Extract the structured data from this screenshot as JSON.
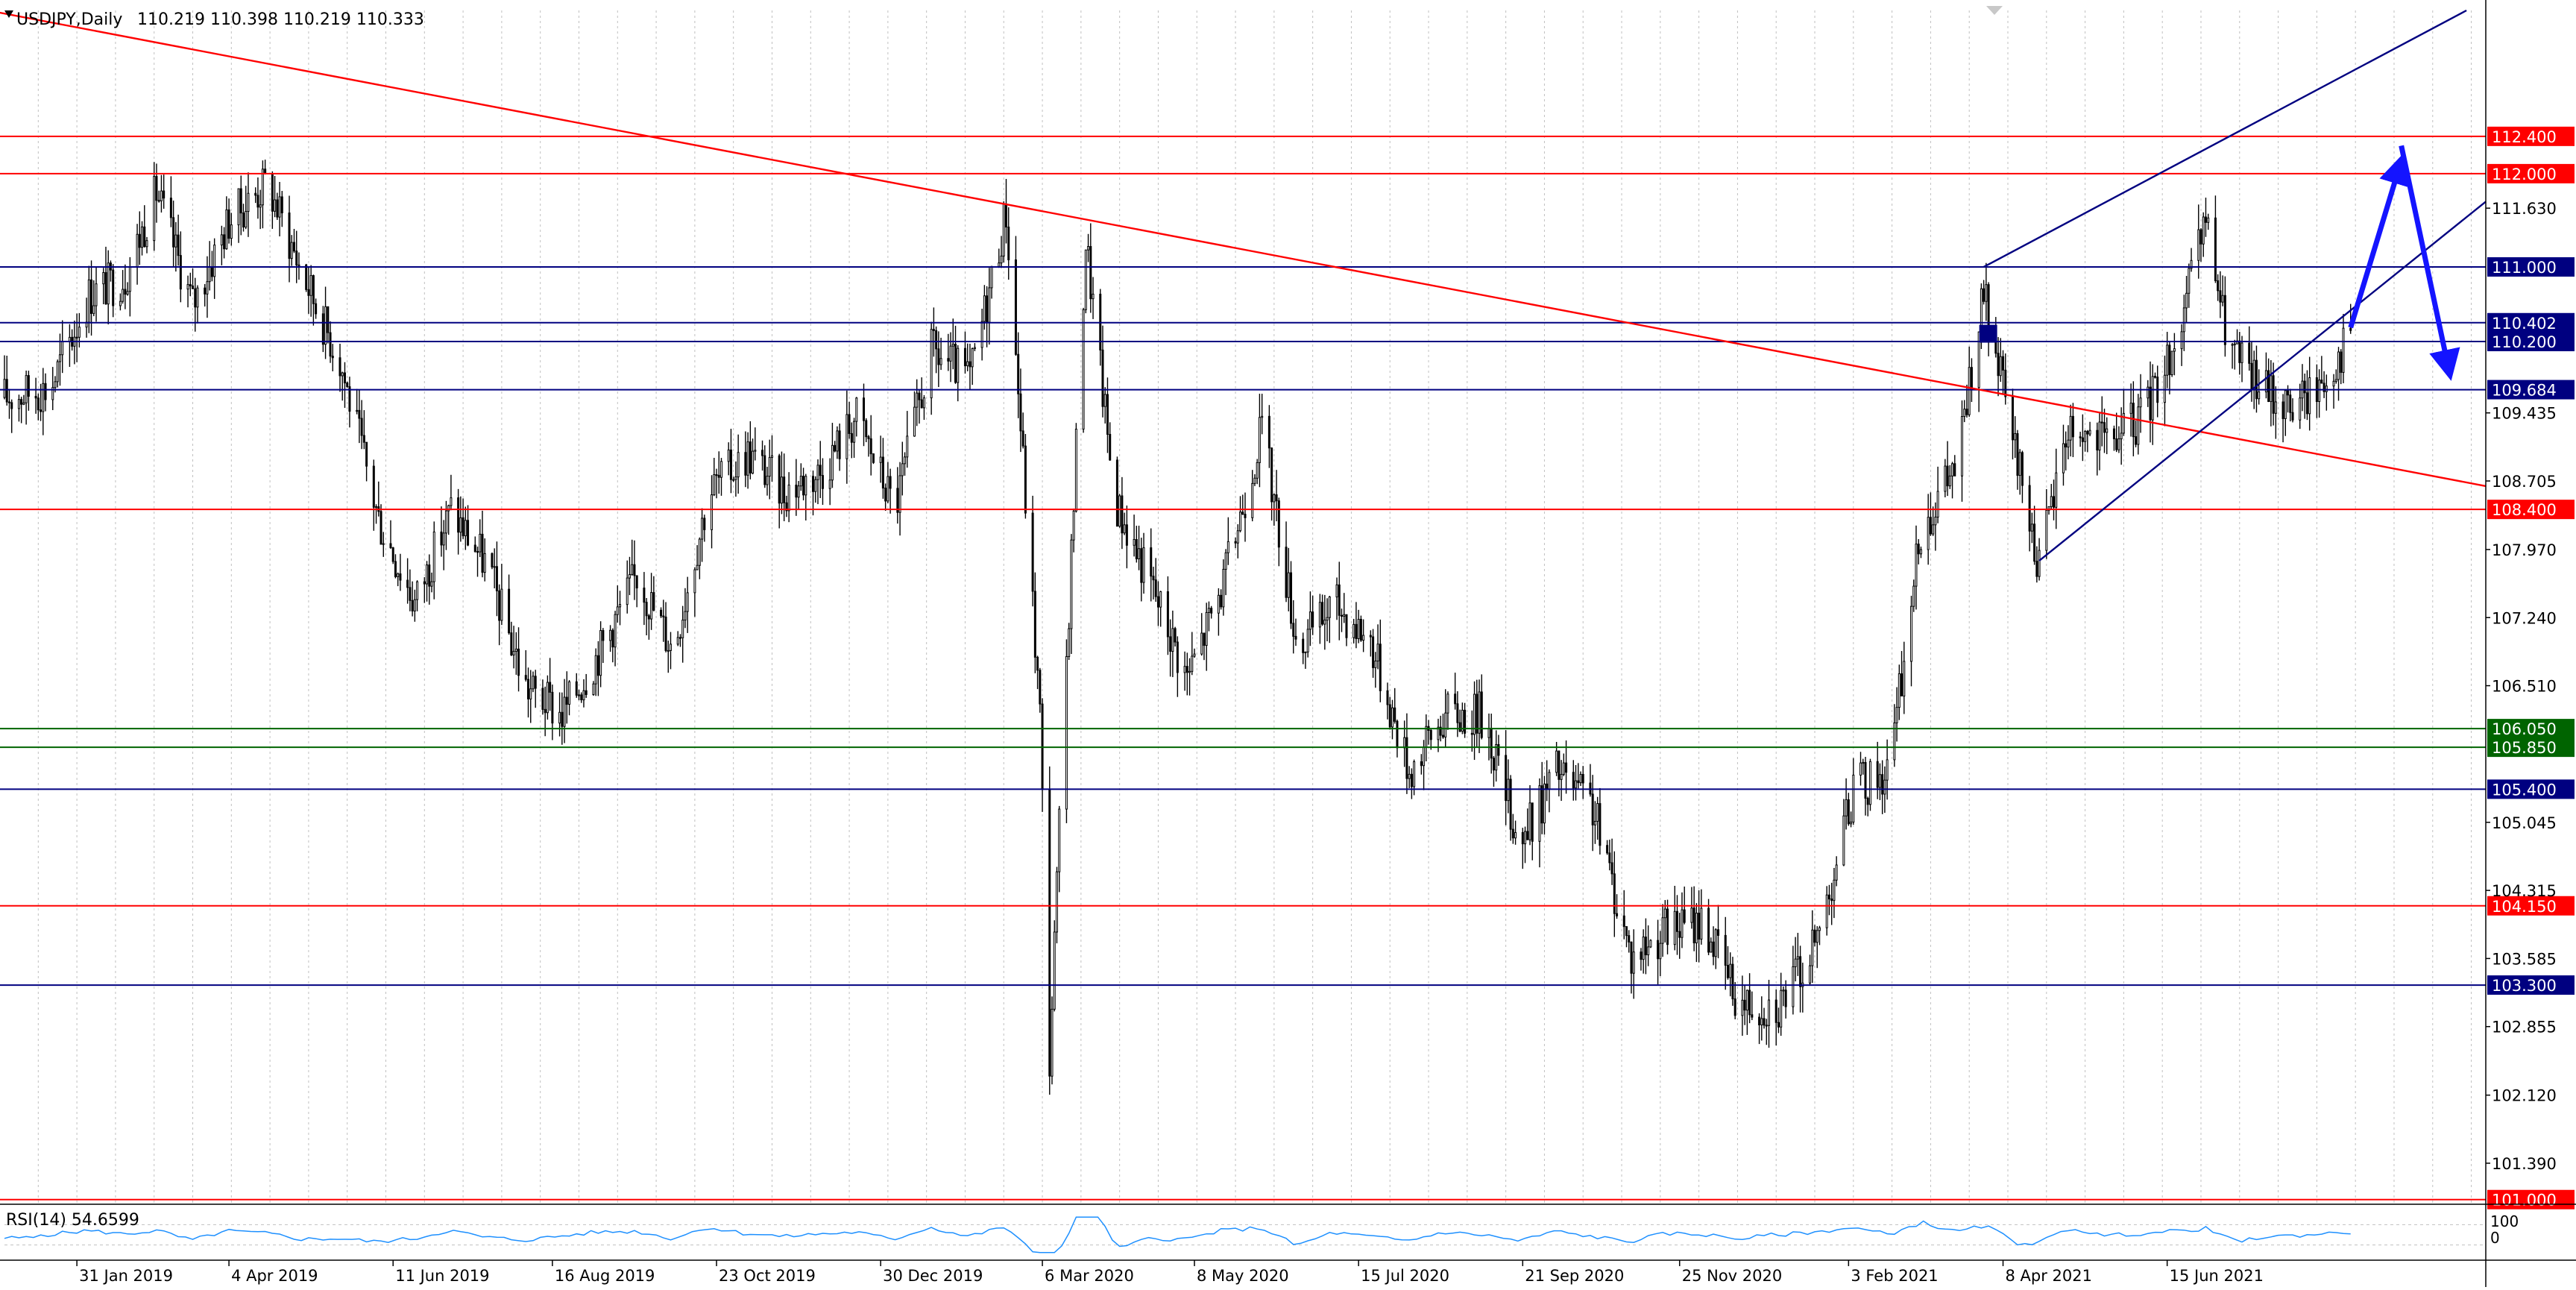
{
  "header": {
    "symbol_label": "USDJPY,Daily",
    "ohlc_label": "110.219 110.398 110.219 110.333"
  },
  "indicator": {
    "label": "RSI(14) 54.6599",
    "scale_top": "100",
    "scale_bottom": "0"
  },
  "colors": {
    "support_resistance_red": "#ff0000",
    "level_blue": "#000080",
    "level_green": "#006400",
    "candle": "#000000",
    "rsi_line": "#1e90ff",
    "grid": "#c0c0c0",
    "arrow": "#1414ff"
  },
  "chart_data": {
    "type": "candlestick",
    "symbol": "USDJPY",
    "timeframe": "Daily",
    "ylim": [
      100.95,
      113.75
    ],
    "price_ticks": [
      "111.630",
      "109.435",
      "108.705",
      "107.970",
      "107.240",
      "106.510",
      "105.045",
      "104.315",
      "103.585",
      "102.855",
      "102.120",
      "101.390"
    ],
    "date_labels": [
      "31 Jan 2019",
      "4 Apr 2019",
      "11 Jun 2019",
      "16 Aug 2019",
      "23 Oct 2019",
      "30 Dec 2019",
      "6 Mar 2020",
      "8 May 2020",
      "15 Jul 2020",
      "21 Sep 2020",
      "25 Nov 2020",
      "3 Feb 2021",
      "8 Apr 2021",
      "15 Jun 2021"
    ],
    "x_range": [
      "2019-01-01",
      "2021-10-25"
    ],
    "grid": "vertical-dotted",
    "levels": [
      {
        "value": 112.4,
        "label": "112.400",
        "color": "red"
      },
      {
        "value": 112.0,
        "label": "112.000",
        "color": "red"
      },
      {
        "value": 111.0,
        "label": "111.000",
        "color": "blue"
      },
      {
        "value": 110.402,
        "label": "110.402",
        "color": "blue"
      },
      {
        "value": 110.2,
        "label": "110.200",
        "color": "blue"
      },
      {
        "value": 109.684,
        "label": "109.684",
        "color": "blue"
      },
      {
        "value": 108.4,
        "label": "108.400",
        "color": "red"
      },
      {
        "value": 106.05,
        "label": "106.050",
        "color": "green"
      },
      {
        "value": 105.85,
        "label": "105.850",
        "color": "green"
      },
      {
        "value": 105.4,
        "label": "105.400",
        "color": "blue"
      },
      {
        "value": 104.15,
        "label": "104.150",
        "color": "red"
      },
      {
        "value": 103.3,
        "label": "103.300",
        "color": "blue"
      },
      {
        "value": 101.0,
        "label": "101.000",
        "color": "red"
      }
    ],
    "closes": [
      [
        "2019-01-01",
        109.6
      ],
      [
        "2019-01-20",
        109.7
      ],
      [
        "2019-02-05",
        110.7
      ],
      [
        "2019-02-20",
        110.9
      ],
      [
        "2019-03-05",
        111.8
      ],
      [
        "2019-03-20",
        110.6
      ],
      [
        "2019-04-04",
        111.5
      ],
      [
        "2019-04-20",
        111.9
      ],
      [
        "2019-05-05",
        110.9
      ],
      [
        "2019-05-20",
        110.0
      ],
      [
        "2019-06-05",
        108.3
      ],
      [
        "2019-06-20",
        107.4
      ],
      [
        "2019-07-05",
        108.4
      ],
      [
        "2019-07-20",
        107.8
      ],
      [
        "2019-08-05",
        106.5
      ],
      [
        "2019-08-20",
        106.2
      ],
      [
        "2019-09-05",
        106.9
      ],
      [
        "2019-09-20",
        107.7
      ],
      [
        "2019-10-05",
        106.9
      ],
      [
        "2019-10-20",
        108.6
      ],
      [
        "2019-11-05",
        109.0
      ],
      [
        "2019-11-20",
        108.6
      ],
      [
        "2019-12-05",
        108.8
      ],
      [
        "2019-12-20",
        109.4
      ],
      [
        "2020-01-05",
        108.4
      ],
      [
        "2020-01-20",
        110.1
      ],
      [
        "2020-02-05",
        109.8
      ],
      [
        "2020-02-20",
        111.6
      ],
      [
        "2020-03-05",
        106.2
      ],
      [
        "2020-03-09",
        102.5
      ],
      [
        "2020-03-16",
        106.8
      ],
      [
        "2020-03-24",
        111.3
      ],
      [
        "2020-04-05",
        108.5
      ],
      [
        "2020-04-20",
        107.6
      ],
      [
        "2020-05-05",
        106.6
      ],
      [
        "2020-05-20",
        107.6
      ],
      [
        "2020-06-05",
        109.3
      ],
      [
        "2020-06-20",
        106.9
      ],
      [
        "2020-07-05",
        107.4
      ],
      [
        "2020-07-20",
        107.0
      ],
      [
        "2020-08-05",
        105.6
      ],
      [
        "2020-08-20",
        106.2
      ],
      [
        "2020-09-05",
        106.2
      ],
      [
        "2020-09-20",
        104.8
      ],
      [
        "2020-10-05",
        105.6
      ],
      [
        "2020-10-20",
        105.2
      ],
      [
        "2020-11-05",
        103.6
      ],
      [
        "2020-11-20",
        103.9
      ],
      [
        "2020-12-05",
        104.0
      ],
      [
        "2020-12-20",
        103.1
      ],
      [
        "2021-01-05",
        103.1
      ],
      [
        "2021-01-20",
        103.7
      ],
      [
        "2021-02-05",
        105.4
      ],
      [
        "2021-02-20",
        105.6
      ],
      [
        "2021-03-05",
        108.2
      ],
      [
        "2021-03-20",
        108.9
      ],
      [
        "2021-03-31",
        110.7
      ],
      [
        "2021-04-10",
        109.4
      ],
      [
        "2021-04-23",
        107.8
      ],
      [
        "2021-05-05",
        109.3
      ],
      [
        "2021-05-20",
        109.1
      ],
      [
        "2021-06-05",
        109.4
      ],
      [
        "2021-06-20",
        110.3
      ],
      [
        "2021-07-01",
        111.5
      ],
      [
        "2021-07-10",
        110.2
      ],
      [
        "2021-07-20",
        109.8
      ],
      [
        "2021-08-05",
        109.5
      ],
      [
        "2021-08-20",
        109.8
      ],
      [
        "2021-08-30",
        110.3
      ]
    ],
    "rsi": {
      "period": 14,
      "last": 54.6599,
      "ylim": [
        0,
        100
      ]
    }
  }
}
